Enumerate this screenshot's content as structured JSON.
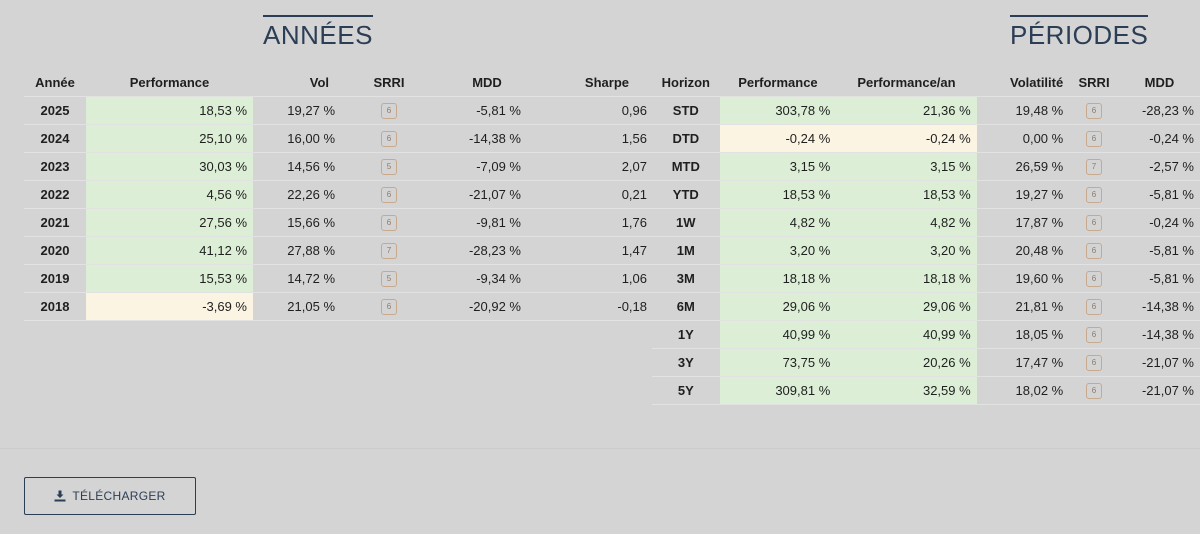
{
  "annees": {
    "title": "ANNÉES",
    "headers": [
      "Année",
      "Performance",
      "Vol",
      "SRRI",
      "MDD",
      "Sharpe"
    ],
    "rows": [
      {
        "year": "2025",
        "performance": "18,53 %",
        "perf_sign": "pos",
        "vol": "19,27 %",
        "srri": "6",
        "mdd": "-5,81 %",
        "sharpe": "0,96"
      },
      {
        "year": "2024",
        "performance": "25,10 %",
        "perf_sign": "pos",
        "vol": "16,00 %",
        "srri": "6",
        "mdd": "-14,38 %",
        "sharpe": "1,56"
      },
      {
        "year": "2023",
        "performance": "30,03 %",
        "perf_sign": "pos",
        "vol": "14,56 %",
        "srri": "5",
        "mdd": "-7,09 %",
        "sharpe": "2,07"
      },
      {
        "year": "2022",
        "performance": "4,56 %",
        "perf_sign": "pos",
        "vol": "22,26 %",
        "srri": "6",
        "mdd": "-21,07 %",
        "sharpe": "0,21"
      },
      {
        "year": "2021",
        "performance": "27,56 %",
        "perf_sign": "pos",
        "vol": "15,66 %",
        "srri": "6",
        "mdd": "-9,81 %",
        "sharpe": "1,76"
      },
      {
        "year": "2020",
        "performance": "41,12 %",
        "perf_sign": "pos",
        "vol": "27,88 %",
        "srri": "7",
        "mdd": "-28,23 %",
        "sharpe": "1,47"
      },
      {
        "year": "2019",
        "performance": "15,53 %",
        "perf_sign": "pos",
        "vol": "14,72 %",
        "srri": "5",
        "mdd": "-9,34 %",
        "sharpe": "1,06"
      },
      {
        "year": "2018",
        "performance": "-3,69 %",
        "perf_sign": "neg",
        "vol": "21,05 %",
        "srri": "6",
        "mdd": "-20,92 %",
        "sharpe": "-0,18"
      }
    ]
  },
  "periodes": {
    "title": "PÉRIODES",
    "headers": [
      "Horizon",
      "Performance",
      "Performance/an",
      "Volatilité",
      "SRRI",
      "MDD"
    ],
    "rows": [
      {
        "horizon": "STD",
        "performance": "303,78 %",
        "perf_an": "21,36 %",
        "perf_sign": "pos",
        "volatilite": "19,48 %",
        "srri": "6",
        "mdd": "-28,23 %"
      },
      {
        "horizon": "DTD",
        "performance": "-0,24 %",
        "perf_an": "-0,24 %",
        "perf_sign": "neg",
        "volatilite": "0,00 %",
        "srri": "6",
        "mdd": "-0,24 %"
      },
      {
        "horizon": "MTD",
        "performance": "3,15 %",
        "perf_an": "3,15 %",
        "perf_sign": "pos",
        "volatilite": "26,59 %",
        "srri": "7",
        "mdd": "-2,57 %"
      },
      {
        "horizon": "YTD",
        "performance": "18,53 %",
        "perf_an": "18,53 %",
        "perf_sign": "pos",
        "volatilite": "19,27 %",
        "srri": "6",
        "mdd": "-5,81 %"
      },
      {
        "horizon": "1W",
        "performance": "4,82 %",
        "perf_an": "4,82 %",
        "perf_sign": "pos",
        "volatilite": "17,87 %",
        "srri": "6",
        "mdd": "-0,24 %"
      },
      {
        "horizon": "1M",
        "performance": "3,20 %",
        "perf_an": "3,20 %",
        "perf_sign": "pos",
        "volatilite": "20,48 %",
        "srri": "6",
        "mdd": "-5,81 %"
      },
      {
        "horizon": "3M",
        "performance": "18,18 %",
        "perf_an": "18,18 %",
        "perf_sign": "pos",
        "volatilite": "19,60 %",
        "srri": "6",
        "mdd": "-5,81 %"
      },
      {
        "horizon": "6M",
        "performance": "29,06 %",
        "perf_an": "29,06 %",
        "perf_sign": "pos",
        "volatilite": "21,81 %",
        "srri": "6",
        "mdd": "-14,38 %"
      },
      {
        "horizon": "1Y",
        "performance": "40,99 %",
        "perf_an": "40,99 %",
        "perf_sign": "pos",
        "volatilite": "18,05 %",
        "srri": "6",
        "mdd": "-14,38 %"
      },
      {
        "horizon": "3Y",
        "performance": "73,75 %",
        "perf_an": "20,26 %",
        "perf_sign": "pos",
        "volatilite": "17,47 %",
        "srri": "6",
        "mdd": "-21,07 %"
      },
      {
        "horizon": "5Y",
        "performance": "309,81 %",
        "perf_an": "32,59 %",
        "perf_sign": "pos",
        "volatilite": "18,02 %",
        "srri": "6",
        "mdd": "-21,07 %"
      }
    ]
  },
  "download": {
    "label": "TÉLÉCHARGER",
    "icon": "download-icon"
  },
  "colors": {
    "positive_bg": "#dcefd6",
    "negative_bg": "#fcf4e3",
    "accent": "#2c3e55",
    "badge_border": "#c7a98e"
  }
}
